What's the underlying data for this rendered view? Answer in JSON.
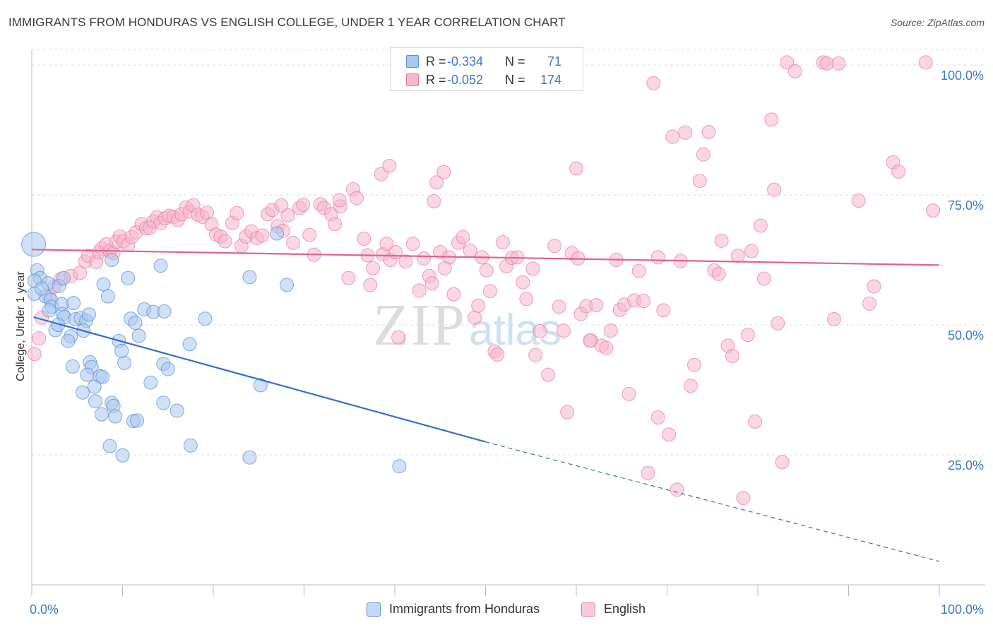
{
  "title": "IMMIGRANTS FROM HONDURAS VS ENGLISH COLLEGE, UNDER 1 YEAR CORRELATION CHART",
  "source": "Source: ZipAtlas.com",
  "watermark": {
    "zip": "ZIP",
    "atlas": "atlas"
  },
  "legend_top": {
    "rows": [
      {
        "r_label": "R =",
        "r_value": "-0.334",
        "n_label": "N =",
        "n_value": "71"
      },
      {
        "r_label": "R =",
        "r_value": "-0.052",
        "n_label": "N =",
        "n_value": "174"
      }
    ]
  },
  "legend_bottom": {
    "series1": "Immigrants from Honduras",
    "series2": "English"
  },
  "chart_data": {
    "type": "scatter",
    "title": "IMMIGRANTS FROM HONDURAS VS ENGLISH COLLEGE, UNDER 1 YEAR CORRELATION CHART",
    "xlabel": "",
    "ylabel": "College, Under 1 year",
    "xlim": [
      0,
      100
    ],
    "ylim": [
      0,
      103
    ],
    "x_tick_labels": {
      "left": "0.0%",
      "right": "100.0%"
    },
    "y_ticks": [
      {
        "value": 25,
        "label": "25.0%"
      },
      {
        "value": 50,
        "label": "50.0%"
      },
      {
        "value": 75,
        "label": "75.0%"
      },
      {
        "value": 100,
        "label": "100.0%"
      }
    ],
    "grid": true,
    "series": [
      {
        "name": "Immigrants from Honduras",
        "color": "#5b8fd4",
        "fill": "#a9c7ef",
        "r": -0.334,
        "n": 71,
        "trend": {
          "x0": 0.2,
          "y0": 51.5,
          "x1": 50,
          "y1": 27.5,
          "x_dash_end": 100,
          "y_dash_end": 4.5
        },
        "points": [
          [
            0.2,
            65.5
          ],
          [
            0.6,
            60.5
          ],
          [
            0.9,
            59
          ],
          [
            0.3,
            58.5
          ],
          [
            1.8,
            58
          ],
          [
            3.0,
            57.5
          ],
          [
            3.5,
            59
          ],
          [
            7.9,
            57.8
          ],
          [
            8.4,
            55.5
          ],
          [
            10.6,
            59
          ],
          [
            14.2,
            61.4
          ],
          [
            24.0,
            59.2
          ],
          [
            28.1,
            57.7
          ],
          [
            27.0,
            67.6
          ],
          [
            8.8,
            62.5
          ],
          [
            1.5,
            55.5
          ],
          [
            2.1,
            54.8
          ],
          [
            2.2,
            53.5
          ],
          [
            3.3,
            54.0
          ],
          [
            4.6,
            54.2
          ],
          [
            1.9,
            52.8
          ],
          [
            3.4,
            52.1
          ],
          [
            3.6,
            51.5
          ],
          [
            4.8,
            51.1
          ],
          [
            5.4,
            51.3
          ],
          [
            6.0,
            50.8
          ],
          [
            10.9,
            51.2
          ],
          [
            12.4,
            53.0
          ],
          [
            13.4,
            52.5
          ],
          [
            14.6,
            52.6
          ],
          [
            19.1,
            51.2
          ],
          [
            11.4,
            50.4
          ],
          [
            2.6,
            49.0
          ],
          [
            5.7,
            48.9
          ],
          [
            4.3,
            47.8
          ],
          [
            4.0,
            46.9
          ],
          [
            9.6,
            46.9
          ],
          [
            11.8,
            47.9
          ],
          [
            17.4,
            46.3
          ],
          [
            4.5,
            42.0
          ],
          [
            6.4,
            42.8
          ],
          [
            6.6,
            41.9
          ],
          [
            10.2,
            42.7
          ],
          [
            14.5,
            42.5
          ],
          [
            15.0,
            41.5
          ],
          [
            6.1,
            40.4
          ],
          [
            7.5,
            40.1
          ],
          [
            7.8,
            40.0
          ],
          [
            13.1,
            38.9
          ],
          [
            25.2,
            38.4
          ],
          [
            6.9,
            38.1
          ],
          [
            5.6,
            37.0
          ],
          [
            7.0,
            35.3
          ],
          [
            8.8,
            35.0
          ],
          [
            9.0,
            34.4
          ],
          [
            14.5,
            35.0
          ],
          [
            16.0,
            33.5
          ],
          [
            7.7,
            32.8
          ],
          [
            9.2,
            32.4
          ],
          [
            11.2,
            31.5
          ],
          [
            11.6,
            31.6
          ],
          [
            8.6,
            26.7
          ],
          [
            17.5,
            26.8
          ],
          [
            10.0,
            24.9
          ],
          [
            24.0,
            24.5
          ],
          [
            40.5,
            22.8
          ],
          [
            0.3,
            56.0
          ],
          [
            2.9,
            50.0
          ],
          [
            6.3,
            52.0
          ],
          [
            9.9,
            45.0
          ],
          [
            1.1,
            57.0
          ]
        ]
      },
      {
        "name": "English",
        "color": "#e77fa2",
        "fill": "#f6b7cb",
        "r": -0.052,
        "n": 174,
        "trend": {
          "x0": 0,
          "y0": 64.5,
          "x1": 100,
          "y1": 61.5
        },
        "points": [
          [
            0.3,
            44.4
          ],
          [
            0.8,
            47.4
          ],
          [
            1.1,
            51.4
          ],
          [
            1.9,
            55.4
          ],
          [
            2.5,
            57.4
          ],
          [
            3.2,
            58.8
          ],
          [
            4.3,
            59.4
          ],
          [
            5.3,
            60.0
          ],
          [
            5.9,
            62.2
          ],
          [
            6.2,
            63.3
          ],
          [
            7.1,
            62.1
          ],
          [
            7.4,
            64.0
          ],
          [
            7.7,
            64.7
          ],
          [
            8.2,
            65.5
          ],
          [
            8.6,
            64.2
          ],
          [
            9.0,
            63.8
          ],
          [
            9.3,
            66.0
          ],
          [
            9.7,
            67.0
          ],
          [
            10.1,
            66.1
          ],
          [
            10.6,
            65.4
          ],
          [
            11.0,
            66.9
          ],
          [
            11.5,
            67.8
          ],
          [
            12.1,
            69.4
          ],
          [
            12.6,
            68.6
          ],
          [
            13.0,
            68.7
          ],
          [
            13.4,
            69.9
          ],
          [
            13.8,
            70.7
          ],
          [
            14.2,
            69.6
          ],
          [
            14.7,
            70.5
          ],
          [
            15.1,
            71.0
          ],
          [
            15.6,
            70.8
          ],
          [
            16.1,
            70.2
          ],
          [
            16.5,
            71.3
          ],
          [
            17.0,
            72.6
          ],
          [
            17.4,
            71.8
          ],
          [
            17.8,
            73.0
          ],
          [
            18.3,
            71.2
          ],
          [
            18.8,
            70.8
          ],
          [
            19.3,
            71.6
          ],
          [
            19.8,
            69.4
          ],
          [
            20.3,
            67.4
          ],
          [
            20.8,
            67.0
          ],
          [
            21.3,
            66.1
          ],
          [
            22.1,
            69.6
          ],
          [
            22.6,
            71.5
          ],
          [
            23.1,
            65.2
          ],
          [
            23.6,
            67.0
          ],
          [
            24.2,
            68.0
          ],
          [
            24.8,
            66.7
          ],
          [
            25.4,
            67.2
          ],
          [
            26.0,
            71.3
          ],
          [
            26.5,
            72.1
          ],
          [
            27.1,
            69.0
          ],
          [
            27.7,
            68.1
          ],
          [
            28.2,
            71.1
          ],
          [
            28.8,
            65.8
          ],
          [
            29.5,
            72.5
          ],
          [
            29.9,
            73.1
          ],
          [
            30.6,
            67.3
          ],
          [
            31.1,
            63.5
          ],
          [
            31.8,
            73.2
          ],
          [
            32.2,
            72.5
          ],
          [
            33.0,
            71.3
          ],
          [
            33.4,
            69.4
          ],
          [
            34.0,
            72.8
          ],
          [
            34.9,
            59.0
          ],
          [
            35.4,
            76.1
          ],
          [
            35.8,
            74.4
          ],
          [
            36.6,
            66.6
          ],
          [
            37.3,
            57.7
          ],
          [
            37.6,
            60.9
          ],
          [
            38.5,
            79.0
          ],
          [
            38.7,
            63.6
          ],
          [
            39.1,
            65.6
          ],
          [
            39.5,
            62.5
          ],
          [
            40.1,
            64.0
          ],
          [
            40.4,
            47.6
          ],
          [
            41.2,
            62.2
          ],
          [
            42.0,
            65.6
          ],
          [
            42.7,
            56.6
          ],
          [
            43.2,
            62.8
          ],
          [
            43.8,
            59.4
          ],
          [
            44.1,
            58.0
          ],
          [
            44.6,
            77.4
          ],
          [
            45.0,
            64.0
          ],
          [
            45.4,
            79.4
          ],
          [
            46.0,
            63.0
          ],
          [
            46.5,
            55.9
          ],
          [
            47.0,
            65.8
          ],
          [
            47.5,
            66.9
          ],
          [
            48.3,
            64.3
          ],
          [
            48.8,
            51.4
          ],
          [
            49.2,
            53.7
          ],
          [
            49.6,
            63.0
          ],
          [
            50.1,
            60.5
          ],
          [
            50.5,
            56.5
          ],
          [
            51.0,
            44.9
          ],
          [
            51.3,
            44.3
          ],
          [
            51.9,
            65.9
          ],
          [
            52.3,
            61.3
          ],
          [
            52.9,
            62.9
          ],
          [
            53.5,
            63.0
          ],
          [
            54.1,
            58.2
          ],
          [
            54.5,
            55.0
          ],
          [
            55.2,
            60.8
          ],
          [
            55.5,
            44.2
          ],
          [
            56.0,
            48.8
          ],
          [
            56.9,
            40.4
          ],
          [
            57.6,
            65.2
          ],
          [
            58.1,
            53.5
          ],
          [
            58.6,
            48.9
          ],
          [
            59.0,
            33.2
          ],
          [
            59.5,
            63.8
          ],
          [
            60.0,
            80.1
          ],
          [
            60.5,
            52.1
          ],
          [
            61.1,
            53.6
          ],
          [
            61.6,
            47.0
          ],
          [
            62.2,
            53.8
          ],
          [
            62.8,
            46.0
          ],
          [
            63.3,
            45.6
          ],
          [
            63.8,
            48.9
          ],
          [
            64.4,
            62.5
          ],
          [
            64.8,
            52.9
          ],
          [
            65.3,
            53.9
          ],
          [
            65.8,
            36.7
          ],
          [
            66.4,
            54.7
          ],
          [
            66.9,
            60.4
          ],
          [
            67.4,
            54.6
          ],
          [
            67.9,
            21.5
          ],
          [
            68.5,
            96.5
          ],
          [
            69.0,
            32.2
          ],
          [
            69.6,
            52.8
          ],
          [
            70.2,
            28.9
          ],
          [
            70.6,
            86.2
          ],
          [
            71.1,
            18.3
          ],
          [
            71.5,
            62.3
          ],
          [
            72.0,
            87.0
          ],
          [
            72.6,
            38.3
          ],
          [
            73.0,
            42.3
          ],
          [
            73.6,
            77.7
          ],
          [
            74.0,
            82.8
          ],
          [
            74.6,
            87.1
          ],
          [
            75.2,
            60.5
          ],
          [
            75.7,
            59.8
          ],
          [
            76.0,
            66.2
          ],
          [
            76.7,
            46.0
          ],
          [
            77.2,
            44.0
          ],
          [
            77.8,
            63.3
          ],
          [
            78.4,
            16.7
          ],
          [
            78.9,
            48.1
          ],
          [
            79.3,
            64.2
          ],
          [
            79.7,
            31.4
          ],
          [
            80.3,
            69.1
          ],
          [
            80.7,
            58.9
          ],
          [
            81.5,
            89.5
          ],
          [
            81.8,
            76.0
          ],
          [
            82.2,
            50.3
          ],
          [
            82.7,
            23.6
          ],
          [
            83.2,
            100.5
          ],
          [
            84.1,
            98.8
          ],
          [
            87.2,
            100.5
          ],
          [
            87.6,
            100.3
          ],
          [
            88.4,
            51.1
          ],
          [
            88.9,
            100.3
          ],
          [
            91.1,
            73.9
          ],
          [
            92.3,
            54.1
          ],
          [
            92.8,
            57.4
          ],
          [
            94.9,
            81.3
          ],
          [
            95.5,
            79.5
          ],
          [
            98.5,
            100.5
          ],
          [
            99.3,
            72.0
          ],
          [
            69.0,
            63.0
          ],
          [
            60.2,
            62.8
          ],
          [
            61.5,
            47.0
          ],
          [
            45.5,
            60.9
          ],
          [
            37.0,
            63.4
          ],
          [
            44.3,
            73.8
          ],
          [
            39.4,
            80.6
          ],
          [
            33.9,
            74.0
          ],
          [
            27.5,
            73.0
          ]
        ]
      }
    ]
  }
}
